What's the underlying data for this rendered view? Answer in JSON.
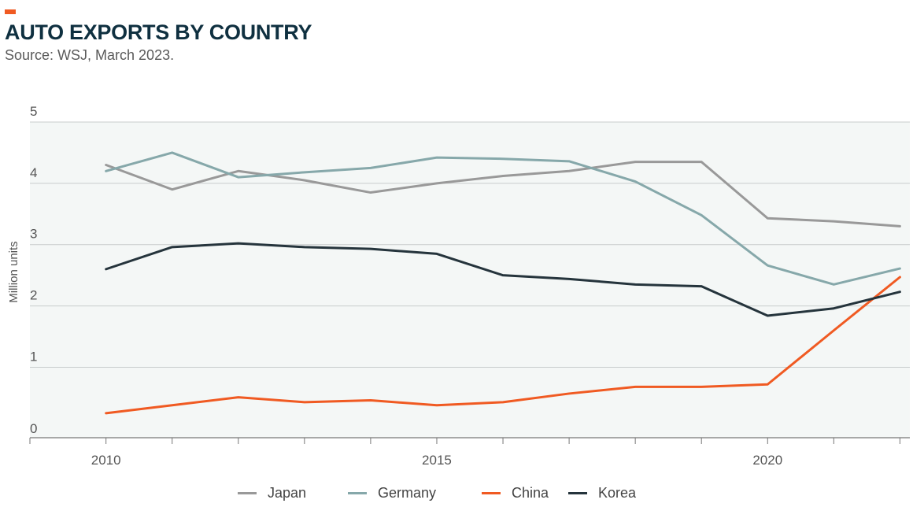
{
  "header": {
    "title": "AUTO EXPORTS BY COUNTRY",
    "source": "Source: WSJ, March 2023."
  },
  "colors": {
    "accent": "#f05a22",
    "title": "#0f3040",
    "plot_background": "#f4f7f6",
    "gridline": "#c8cccc",
    "axis": "#777777"
  },
  "chart_data": {
    "type": "line",
    "title": "AUTO EXPORTS BY COUNTRY",
    "subtitle": "Source: WSJ, March 2023.",
    "xlabel": "",
    "ylabel": "Million units",
    "x": [
      2010,
      2011,
      2012,
      2013,
      2014,
      2015,
      2016,
      2017,
      2018,
      2019,
      2020,
      2021,
      2022
    ],
    "xlim": [
      2008.85,
      2022.15
    ],
    "ylim": [
      -0.15,
      5
    ],
    "yticks": [
      0,
      1,
      2,
      3,
      4,
      5
    ],
    "xticks": [
      2010,
      2015,
      2020
    ],
    "grid": true,
    "legend_position": "bottom",
    "series": [
      {
        "name": "Japan",
        "color": "#999999",
        "values": [
          4.3,
          3.9,
          4.2,
          4.05,
          3.85,
          4.0,
          4.12,
          4.2,
          4.35,
          4.35,
          3.43,
          3.38,
          3.3
        ]
      },
      {
        "name": "Germany",
        "color": "#86a8aa",
        "values": [
          4.2,
          4.5,
          4.1,
          4.18,
          4.25,
          4.42,
          4.4,
          4.36,
          4.03,
          3.48,
          2.66,
          2.35,
          2.61
        ]
      },
      {
        "name": "China",
        "color": "#f05a22",
        "values": [
          0.25,
          0.38,
          0.51,
          0.43,
          0.46,
          0.38,
          0.43,
          0.57,
          0.68,
          0.68,
          0.72,
          1.6,
          2.47
        ]
      },
      {
        "name": "Korea",
        "color": "#25343c",
        "values": [
          2.6,
          2.96,
          3.02,
          2.96,
          2.93,
          2.85,
          2.5,
          2.44,
          2.35,
          2.32,
          1.84,
          1.96,
          2.23
        ]
      }
    ]
  }
}
